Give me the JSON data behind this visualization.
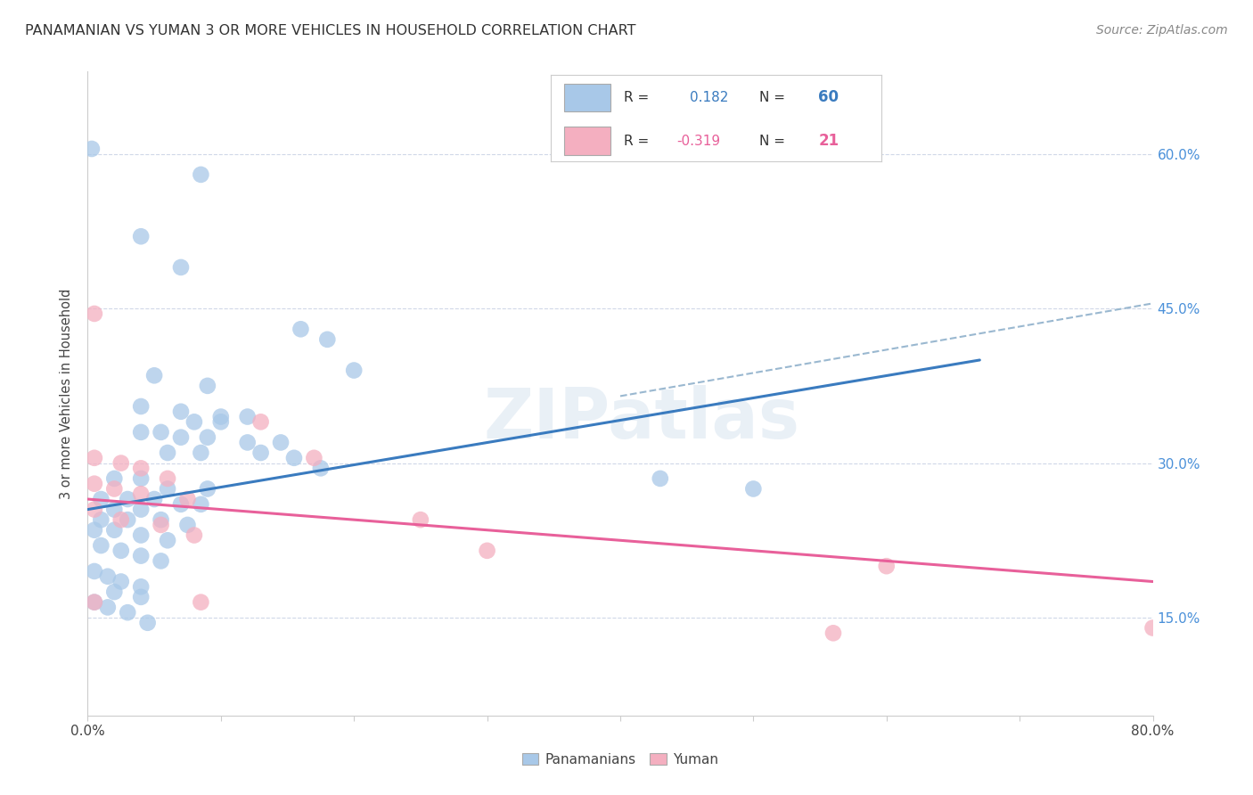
{
  "title": "PANAMANIAN VS YUMAN 3 OR MORE VEHICLES IN HOUSEHOLD CORRELATION CHART",
  "source": "Source: ZipAtlas.com",
  "ylabel": "3 or more Vehicles in Household",
  "ytick_labels": [
    "15.0%",
    "30.0%",
    "45.0%",
    "60.0%"
  ],
  "ytick_values": [
    0.15,
    0.3,
    0.45,
    0.6
  ],
  "xlim": [
    0.0,
    0.8
  ],
  "ylim": [
    0.055,
    0.68
  ],
  "watermark": "ZIPatlas",
  "blue_color": "#a8c8e8",
  "pink_color": "#f4afc0",
  "blue_line_color": "#3a7bbf",
  "pink_line_color": "#e8609a",
  "dashed_line_color": "#9ab8d0",
  "right_tick_color": "#4a90d9",
  "blue_line": [
    [
      0.0,
      0.255
    ],
    [
      0.67,
      0.4
    ]
  ],
  "pink_line": [
    [
      0.0,
      0.265
    ],
    [
      0.8,
      0.185
    ]
  ],
  "dash_line": [
    [
      0.4,
      0.365
    ],
    [
      0.8,
      0.455
    ]
  ],
  "blue_points": [
    [
      0.003,
      0.605
    ],
    [
      0.085,
      0.58
    ],
    [
      0.04,
      0.52
    ],
    [
      0.07,
      0.49
    ],
    [
      0.16,
      0.43
    ],
    [
      0.18,
      0.42
    ],
    [
      0.2,
      0.39
    ],
    [
      0.05,
      0.385
    ],
    [
      0.09,
      0.375
    ],
    [
      0.04,
      0.355
    ],
    [
      0.07,
      0.35
    ],
    [
      0.1,
      0.345
    ],
    [
      0.12,
      0.345
    ],
    [
      0.08,
      0.34
    ],
    [
      0.1,
      0.34
    ],
    [
      0.04,
      0.33
    ],
    [
      0.055,
      0.33
    ],
    [
      0.07,
      0.325
    ],
    [
      0.09,
      0.325
    ],
    [
      0.12,
      0.32
    ],
    [
      0.145,
      0.32
    ],
    [
      0.06,
      0.31
    ],
    [
      0.085,
      0.31
    ],
    [
      0.13,
      0.31
    ],
    [
      0.155,
      0.305
    ],
    [
      0.175,
      0.295
    ],
    [
      0.02,
      0.285
    ],
    [
      0.04,
      0.285
    ],
    [
      0.06,
      0.275
    ],
    [
      0.09,
      0.275
    ],
    [
      0.01,
      0.265
    ],
    [
      0.03,
      0.265
    ],
    [
      0.05,
      0.265
    ],
    [
      0.07,
      0.26
    ],
    [
      0.085,
      0.26
    ],
    [
      0.02,
      0.255
    ],
    [
      0.04,
      0.255
    ],
    [
      0.01,
      0.245
    ],
    [
      0.03,
      0.245
    ],
    [
      0.055,
      0.245
    ],
    [
      0.075,
      0.24
    ],
    [
      0.005,
      0.235
    ],
    [
      0.02,
      0.235
    ],
    [
      0.04,
      0.23
    ],
    [
      0.06,
      0.225
    ],
    [
      0.01,
      0.22
    ],
    [
      0.025,
      0.215
    ],
    [
      0.04,
      0.21
    ],
    [
      0.055,
      0.205
    ],
    [
      0.005,
      0.195
    ],
    [
      0.015,
      0.19
    ],
    [
      0.025,
      0.185
    ],
    [
      0.04,
      0.18
    ],
    [
      0.02,
      0.175
    ],
    [
      0.04,
      0.17
    ],
    [
      0.005,
      0.165
    ],
    [
      0.015,
      0.16
    ],
    [
      0.03,
      0.155
    ],
    [
      0.045,
      0.145
    ],
    [
      0.43,
      0.285
    ],
    [
      0.5,
      0.275
    ]
  ],
  "pink_points": [
    [
      0.005,
      0.445
    ],
    [
      0.005,
      0.305
    ],
    [
      0.025,
      0.3
    ],
    [
      0.04,
      0.295
    ],
    [
      0.06,
      0.285
    ],
    [
      0.005,
      0.28
    ],
    [
      0.02,
      0.275
    ],
    [
      0.04,
      0.27
    ],
    [
      0.075,
      0.265
    ],
    [
      0.005,
      0.255
    ],
    [
      0.025,
      0.245
    ],
    [
      0.055,
      0.24
    ],
    [
      0.08,
      0.23
    ],
    [
      0.13,
      0.34
    ],
    [
      0.17,
      0.305
    ],
    [
      0.25,
      0.245
    ],
    [
      0.3,
      0.215
    ],
    [
      0.005,
      0.165
    ],
    [
      0.085,
      0.165
    ],
    [
      0.6,
      0.2
    ],
    [
      0.8,
      0.14
    ],
    [
      0.56,
      0.135
    ]
  ]
}
